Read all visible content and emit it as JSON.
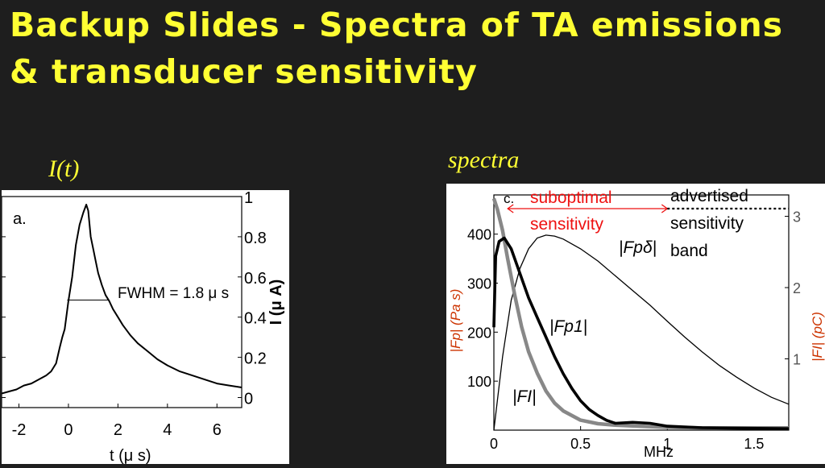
{
  "title": "Backup Slides - Spectra of TA emissions & transducer sensitivity",
  "label_it": "I(t)",
  "label_spectra": "spectra",
  "colors": {
    "background": "#1e1e1e",
    "title": "#ffff33",
    "annotation_red": "#ee1111"
  },
  "chart_data": [
    {
      "type": "line",
      "panel_label": "a.",
      "xlabel": "t (μ s)",
      "ylabel": "I  (μ A)",
      "xlim": [
        -2.7,
        7.0
      ],
      "ylim": [
        -0.05,
        1.0
      ],
      "x_ticks": [
        "-2",
        "0",
        "2",
        "4",
        "6"
      ],
      "y_ticks": [
        "0",
        "0.2",
        "0.4",
        "0.6",
        "0.8",
        "1"
      ],
      "y_axis_side": "right",
      "annotation": "FWHM = 1.8 μ s",
      "fwhm_level": 0.485,
      "fwhm_x": [
        -0.05,
        1.65
      ],
      "series": [
        {
          "x": [
            -2.7,
            -2.4,
            -2.1,
            -1.8,
            -1.5,
            -1.2,
            -0.9,
            -0.7,
            -0.5,
            -0.35,
            -0.25,
            -0.15,
            0.0,
            0.15,
            0.3,
            0.45,
            0.6,
            0.72,
            0.8,
            0.9,
            1.0,
            1.1,
            1.2,
            1.35,
            1.5,
            1.65,
            1.8,
            2.0,
            2.2,
            2.5,
            2.8,
            3.2,
            3.6,
            4.0,
            4.5,
            5.0,
            5.5,
            6.0,
            6.5,
            7.0
          ],
          "y": [
            0.02,
            0.03,
            0.04,
            0.06,
            0.07,
            0.09,
            0.11,
            0.13,
            0.17,
            0.25,
            0.3,
            0.34,
            0.48,
            0.6,
            0.76,
            0.86,
            0.92,
            0.96,
            0.93,
            0.8,
            0.74,
            0.68,
            0.62,
            0.56,
            0.51,
            0.48,
            0.44,
            0.4,
            0.36,
            0.31,
            0.27,
            0.23,
            0.19,
            0.16,
            0.13,
            0.11,
            0.09,
            0.07,
            0.06,
            0.05
          ]
        }
      ]
    },
    {
      "type": "line",
      "panel_label": "c.",
      "xlabel": "MHz",
      "ylabel_left": "|Fp|  (Pa s)",
      "ylabel_right": "|FI|  (pC)",
      "xlim": [
        0,
        1.7
      ],
      "ylim_left": [
        0,
        480
      ],
      "ylim_right": [
        0,
        3.3
      ],
      "x_ticks": [
        "0",
        "0.5",
        "1",
        "1.5"
      ],
      "y_ticks_left": [
        "100",
        "200",
        "300",
        "400"
      ],
      "y_ticks_right": [
        "1",
        "2",
        "3"
      ],
      "annotations": {
        "suboptimal": "suboptimal sensitivity",
        "advertised": "advertised sensitivity band",
        "suboptimal_range": [
          0.08,
          1.0
        ],
        "advertised_start": 1.0
      },
      "series": [
        {
          "name": "|Fpδ|",
          "x": [
            0.0,
            0.05,
            0.1,
            0.15,
            0.2,
            0.25,
            0.3,
            0.35,
            0.4,
            0.5,
            0.6,
            0.7,
            0.8,
            0.9,
            1.0,
            1.1,
            1.2,
            1.3,
            1.4,
            1.5,
            1.6,
            1.7
          ],
          "y": [
            0,
            150,
            265,
            330,
            370,
            392,
            398,
            396,
            390,
            370,
            345,
            315,
            285,
            255,
            222,
            190,
            160,
            132,
            108,
            86,
            67,
            53
          ]
        },
        {
          "name": "|Fp1|",
          "x": [
            0.0,
            0.01,
            0.03,
            0.06,
            0.1,
            0.15,
            0.2,
            0.25,
            0.3,
            0.35,
            0.4,
            0.45,
            0.5,
            0.55,
            0.6,
            0.65,
            0.7,
            0.8,
            0.9,
            1.0,
            1.2,
            1.4,
            1.7
          ],
          "y": [
            210,
            355,
            385,
            392,
            370,
            320,
            270,
            230,
            190,
            150,
            115,
            85,
            60,
            42,
            30,
            20,
            14,
            16,
            14,
            8,
            5,
            4,
            3
          ]
        },
        {
          "name": "|FI|",
          "x": [
            0.0,
            0.02,
            0.05,
            0.08,
            0.12,
            0.16,
            0.2,
            0.25,
            0.3,
            0.35,
            0.4,
            0.5,
            0.6,
            0.7,
            0.8,
            0.9,
            1.0,
            1.2,
            1.4,
            1.7
          ],
          "y": [
            3.25,
            3.1,
            2.8,
            2.4,
            1.9,
            1.45,
            1.1,
            0.8,
            0.55,
            0.38,
            0.27,
            0.14,
            0.09,
            0.07,
            0.06,
            0.05,
            0.04,
            0.03,
            0.03,
            0.03
          ]
        }
      ]
    }
  ]
}
